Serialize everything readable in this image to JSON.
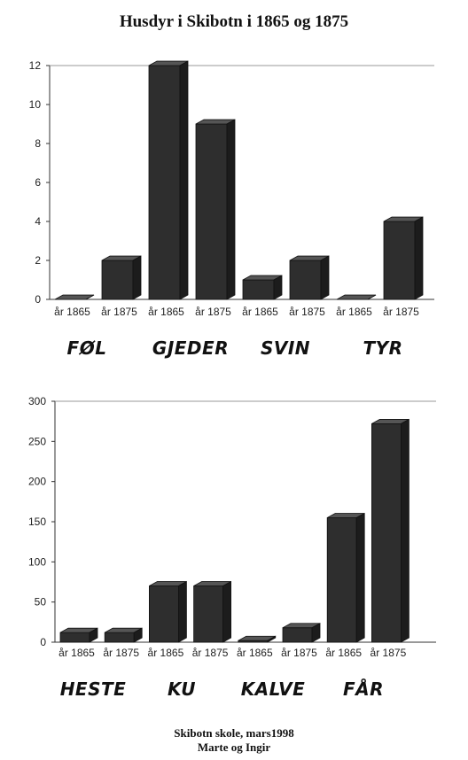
{
  "title": "Husdyr i Skibotn i 1865 og 1875",
  "footer": {
    "line1": "Skibotn skole, mars1998",
    "line2": "Marte og Ingir"
  },
  "chart_data": [
    {
      "type": "bar",
      "title": "",
      "xlabel": "",
      "ylabel": "",
      "ylim": [
        0,
        12
      ],
      "yticks": [
        0,
        2,
        4,
        6,
        8,
        10,
        12
      ],
      "groups": [
        "FØL",
        "GJEDER",
        "SVIN",
        "TYR"
      ],
      "bar_labels": [
        "år 1865",
        "år 1875",
        "år 1865",
        "år 1875",
        "år 1865",
        "år 1875",
        "år 1865",
        "år 1875"
      ],
      "values": [
        0,
        2,
        12,
        9,
        1,
        2,
        0,
        4
      ],
      "grid": false,
      "style": "3d",
      "bar_color": "#2e2e2e"
    },
    {
      "type": "bar",
      "title": "",
      "xlabel": "",
      "ylabel": "",
      "ylim": [
        0,
        300
      ],
      "yticks": [
        0,
        50,
        100,
        150,
        200,
        250,
        300
      ],
      "groups": [
        "HESTE",
        "KU",
        "KALVE",
        "FÅR"
      ],
      "bar_labels": [
        "år 1865",
        "år 1875",
        "år 1865",
        "år 1875",
        "år 1865",
        "år 1875",
        "år 1865",
        "år 1875"
      ],
      "values": [
        12,
        12,
        70,
        70,
        2,
        18,
        155,
        272
      ],
      "grid": false,
      "style": "3d",
      "bar_color": "#2e2e2e"
    }
  ]
}
